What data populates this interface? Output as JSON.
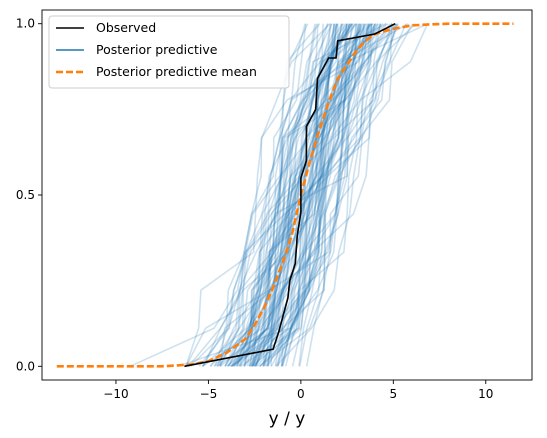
{
  "chart_data": {
    "type": "line",
    "xlabel": "y / y",
    "ylabel": "",
    "xlim": [
      -14,
      12.5
    ],
    "ylim": [
      -0.04,
      1.04
    ],
    "xticks": [
      -10,
      -5,
      0,
      5,
      10
    ],
    "yticks": [
      0.0,
      0.5,
      1.0
    ],
    "xtick_labels": [
      "−10",
      "−5",
      "0",
      "5",
      "10"
    ],
    "ytick_labels": [
      "0.0",
      "0.5",
      "1.0"
    ],
    "legend_position": "top-left",
    "legend": [
      {
        "label": "Observed",
        "color": "#000000",
        "style": "solid"
      },
      {
        "label": "Posterior predictive",
        "color": "#1f77b4",
        "style": "solid"
      },
      {
        "label": "Posterior predictive mean",
        "color": "#ff7f0e",
        "style": "dashed"
      }
    ],
    "series": [
      {
        "name": "Observed",
        "color": "#000000",
        "x": [
          -6.3,
          -1.5,
          -1.2,
          -0.7,
          -0.6,
          -0.3,
          -0.2,
          0.0,
          0.0,
          0.3,
          0.3,
          0.8,
          0.9,
          1.5,
          1.9,
          2.0,
          4.0,
          5.1
        ],
        "y": [
          0.0,
          0.05,
          0.1,
          0.2,
          0.25,
          0.3,
          0.38,
          0.45,
          0.55,
          0.6,
          0.7,
          0.75,
          0.84,
          0.9,
          0.9,
          0.95,
          0.97,
          1.0
        ]
      },
      {
        "name": "Posterior predictive mean",
        "color": "#ff7f0e",
        "x": [
          -13.2,
          -7.5,
          -6.0,
          -5.0,
          -4.0,
          -3.0,
          -2.5,
          -2.0,
          -1.5,
          -1.0,
          -0.5,
          0.0,
          0.5,
          1.0,
          1.5,
          2.0,
          2.5,
          3.0,
          3.5,
          4.0,
          5.0,
          6.0,
          7.0,
          8.0,
          11.5
        ],
        "y": [
          0.0,
          0.0,
          0.005,
          0.015,
          0.04,
          0.08,
          0.12,
          0.17,
          0.23,
          0.3,
          0.38,
          0.5,
          0.6,
          0.69,
          0.77,
          0.84,
          0.88,
          0.92,
          0.95,
          0.97,
          0.985,
          0.995,
          0.998,
          1.0,
          1.0
        ]
      }
    ],
    "posterior_predictive": {
      "name": "Posterior predictive",
      "color": "#1f77b4",
      "count": 100,
      "center_range": [
        -1.5,
        1.8
      ],
      "scale_range": [
        1.6,
        2.6
      ],
      "n_points": 10
    }
  }
}
